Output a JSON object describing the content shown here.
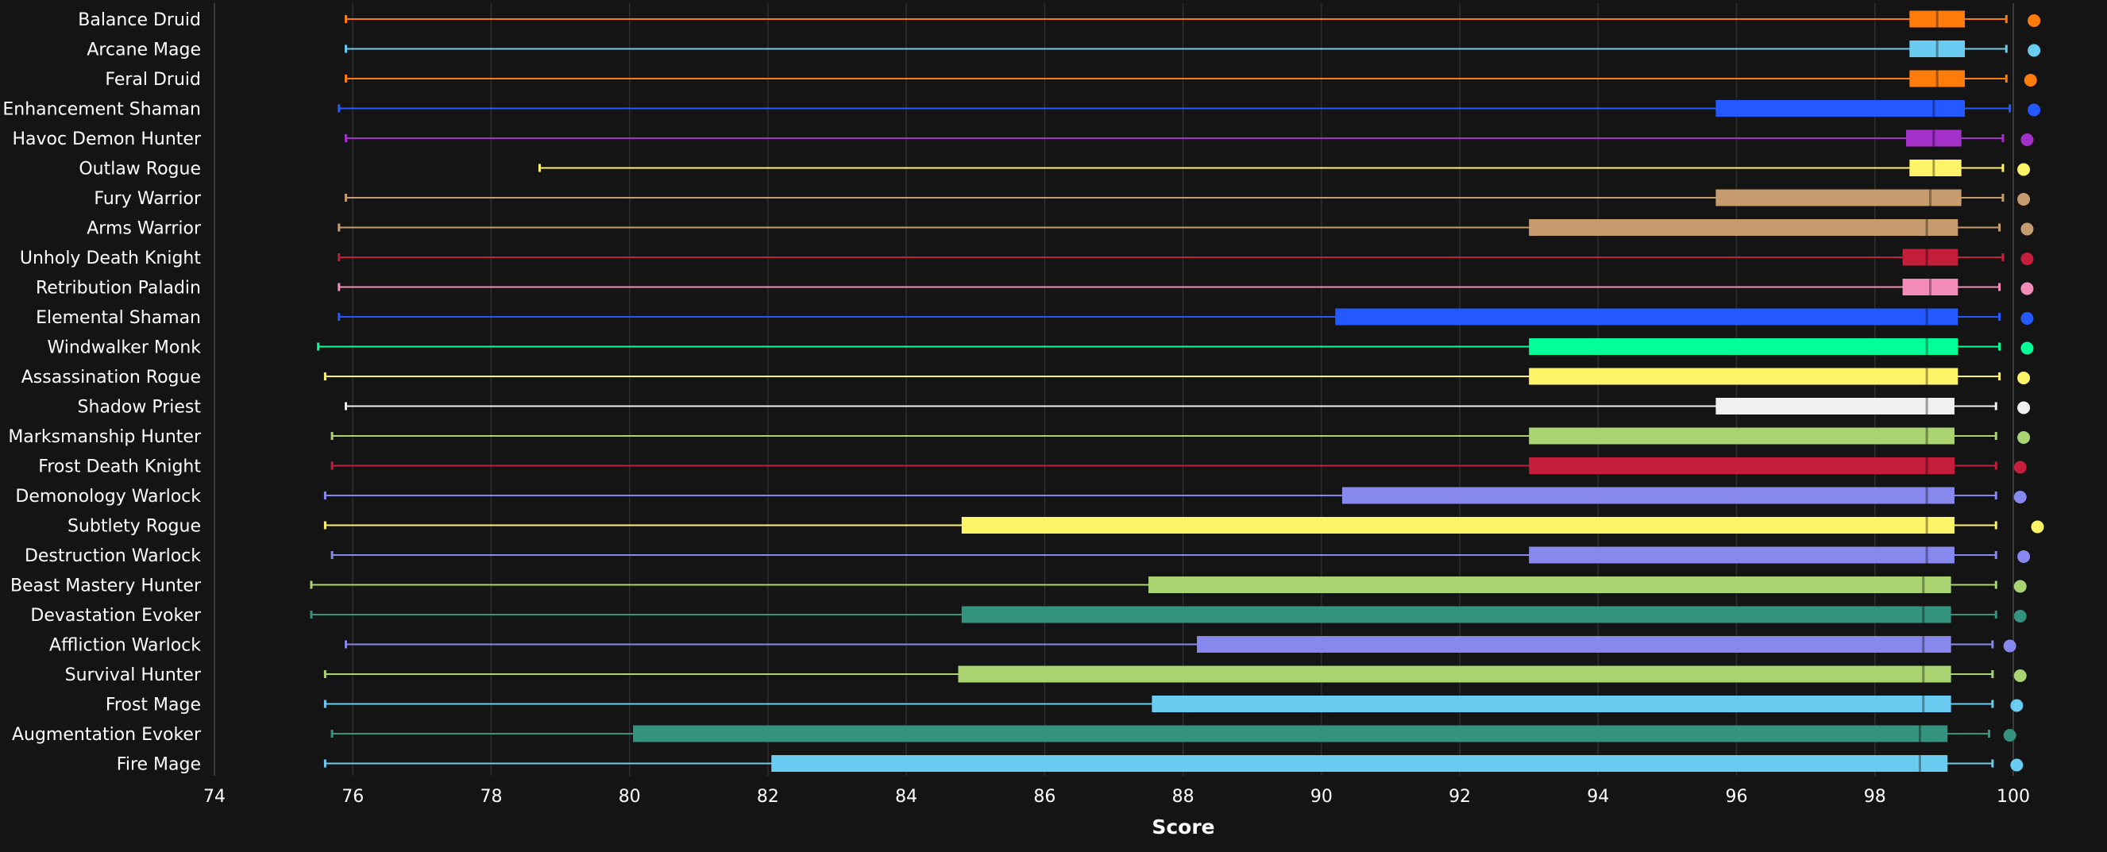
{
  "chart_data": {
    "type": "boxplot",
    "title": "",
    "xlabel": "Score",
    "ylabel": "",
    "xlim": [
      74,
      100
    ],
    "xticks": [
      74,
      76,
      78,
      80,
      82,
      84,
      86,
      88,
      90,
      92,
      94,
      96,
      98,
      100
    ],
    "grid": "vertical",
    "series": [
      {
        "name": "Balance Druid",
        "color": "#FF7C0A",
        "min": 75.9,
        "q1": 98.5,
        "median": 98.9,
        "q3": 99.3,
        "max": 99.9,
        "outlier": 100.3
      },
      {
        "name": "Arcane Mage",
        "color": "#69CCF0",
        "min": 75.9,
        "q1": 98.5,
        "median": 98.9,
        "q3": 99.3,
        "max": 99.9,
        "outlier": 100.3
      },
      {
        "name": "Feral Druid",
        "color": "#FF7C0A",
        "min": 75.9,
        "q1": 98.5,
        "median": 98.9,
        "q3": 99.3,
        "max": 99.9,
        "outlier": 100.25
      },
      {
        "name": "Enhancement Shaman",
        "color": "#2459FF",
        "min": 75.8,
        "q1": 95.7,
        "median": 98.85,
        "q3": 99.3,
        "max": 99.95,
        "outlier": 100.3
      },
      {
        "name": "Havoc Demon Hunter",
        "color": "#A330C9",
        "min": 75.9,
        "q1": 98.45,
        "median": 98.85,
        "q3": 99.25,
        "max": 99.85,
        "outlier": 100.2
      },
      {
        "name": "Outlaw Rogue",
        "color": "#FFF468",
        "min": 78.7,
        "q1": 98.5,
        "median": 98.85,
        "q3": 99.25,
        "max": 99.85,
        "outlier": 100.15
      },
      {
        "name": "Fury Warrior",
        "color": "#C69B6D",
        "min": 75.9,
        "q1": 95.7,
        "median": 98.8,
        "q3": 99.25,
        "max": 99.85,
        "outlier": 100.15
      },
      {
        "name": "Arms Warrior",
        "color": "#C69B6D",
        "min": 75.8,
        "q1": 93.0,
        "median": 98.75,
        "q3": 99.2,
        "max": 99.8,
        "outlier": 100.2
      },
      {
        "name": "Unholy Death Knight",
        "color": "#C41E3A",
        "min": 75.8,
        "q1": 98.4,
        "median": 98.75,
        "q3": 99.2,
        "max": 99.85,
        "outlier": 100.2
      },
      {
        "name": "Retribution Paladin",
        "color": "#F48CBA",
        "min": 75.8,
        "q1": 98.4,
        "median": 98.8,
        "q3": 99.2,
        "max": 99.8,
        "outlier": 100.2
      },
      {
        "name": "Elemental Shaman",
        "color": "#2459FF",
        "min": 75.8,
        "q1": 90.2,
        "median": 98.75,
        "q3": 99.2,
        "max": 99.8,
        "outlier": 100.2
      },
      {
        "name": "Windwalker Monk",
        "color": "#00FF98",
        "min": 75.5,
        "q1": 93.0,
        "median": 98.75,
        "q3": 99.2,
        "max": 99.8,
        "outlier": 100.2
      },
      {
        "name": "Assassination Rogue",
        "color": "#FFF468",
        "min": 75.6,
        "q1": 93.0,
        "median": 98.75,
        "q3": 99.2,
        "max": 99.8,
        "outlier": 100.15
      },
      {
        "name": "Shadow Priest",
        "color": "#F0F0F0",
        "min": 75.9,
        "q1": 95.7,
        "median": 98.75,
        "q3": 99.15,
        "max": 99.75,
        "outlier": 100.15
      },
      {
        "name": "Marksmanship Hunter",
        "color": "#AAD372",
        "min": 75.7,
        "q1": 93.0,
        "median": 98.75,
        "q3": 99.15,
        "max": 99.75,
        "outlier": 100.15
      },
      {
        "name": "Frost Death Knight",
        "color": "#C41E3A",
        "min": 75.7,
        "q1": 93.0,
        "median": 98.75,
        "q3": 99.15,
        "max": 99.75,
        "outlier": 100.1
      },
      {
        "name": "Demonology Warlock",
        "color": "#8788EE",
        "min": 75.6,
        "q1": 90.3,
        "median": 98.75,
        "q3": 99.15,
        "max": 99.75,
        "outlier": 100.1
      },
      {
        "name": "Subtlety Rogue",
        "color": "#FFF468",
        "min": 75.6,
        "q1": 84.8,
        "median": 98.75,
        "q3": 99.15,
        "max": 99.75,
        "outlier": 100.35
      },
      {
        "name": "Destruction Warlock",
        "color": "#8788EE",
        "min": 75.7,
        "q1": 93.0,
        "median": 98.75,
        "q3": 99.15,
        "max": 99.75,
        "outlier": 100.15
      },
      {
        "name": "Beast Mastery Hunter",
        "color": "#AAD372",
        "min": 75.4,
        "q1": 87.5,
        "median": 98.7,
        "q3": 99.1,
        "max": 99.75,
        "outlier": 100.1
      },
      {
        "name": "Devastation Evoker",
        "color": "#33937F",
        "min": 75.4,
        "q1": 84.8,
        "median": 98.7,
        "q3": 99.1,
        "max": 99.75,
        "outlier": 100.1
      },
      {
        "name": "Affliction Warlock",
        "color": "#8788EE",
        "min": 75.9,
        "q1": 88.2,
        "median": 98.7,
        "q3": 99.1,
        "max": 99.7,
        "outlier": 99.95
      },
      {
        "name": "Survival Hunter",
        "color": "#AAD372",
        "min": 75.6,
        "q1": 84.75,
        "median": 98.7,
        "q3": 99.1,
        "max": 99.7,
        "outlier": 100.1
      },
      {
        "name": "Frost Mage",
        "color": "#69CCF0",
        "min": 75.6,
        "q1": 87.55,
        "median": 98.7,
        "q3": 99.1,
        "max": 99.7,
        "outlier": 100.05
      },
      {
        "name": "Augmentation Evoker",
        "color": "#33937F",
        "min": 75.7,
        "q1": 80.05,
        "median": 98.65,
        "q3": 99.05,
        "max": 99.65,
        "outlier": 99.95
      },
      {
        "name": "Fire Mage",
        "color": "#69CCF0",
        "min": 75.6,
        "q1": 82.05,
        "median": 98.65,
        "q3": 99.05,
        "max": 99.7,
        "outlier": 100.05
      }
    ]
  }
}
